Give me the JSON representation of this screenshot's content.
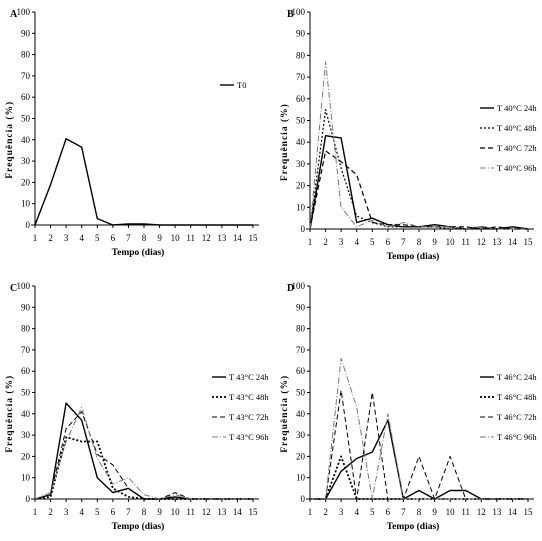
{
  "chart_data": [
    {
      "panel": "A",
      "type": "line",
      "title": "",
      "xlabel": "Tempo (dias)",
      "ylabel": "Frequência (%)",
      "x": [
        1,
        2,
        3,
        4,
        5,
        6,
        7,
        8,
        9,
        10,
        11,
        12,
        13,
        14,
        15
      ],
      "xlim": [
        1,
        15
      ],
      "ylim": [
        0,
        100
      ],
      "yticks": [
        0,
        10,
        20,
        30,
        40,
        50,
        60,
        70,
        80,
        90,
        100
      ],
      "legend_position": "right",
      "series": [
        {
          "name": "T0",
          "values": [
            0,
            19,
            40.5,
            36.5,
            3,
            0,
            0.5,
            0.5,
            0,
            0,
            0,
            0,
            0,
            0,
            0
          ],
          "style": "solid",
          "width": 1.4,
          "color": "#000000"
        }
      ]
    },
    {
      "panel": "B",
      "type": "line",
      "title": "",
      "xlabel": "Tempo (dias)",
      "ylabel": "Frequência (%)",
      "x": [
        1,
        2,
        3,
        4,
        5,
        6,
        7,
        8,
        9,
        10,
        11,
        12,
        13,
        14,
        15
      ],
      "xlim": [
        1,
        15
      ],
      "ylim": [
        0,
        100
      ],
      "yticks": [
        0,
        10,
        20,
        30,
        40,
        50,
        60,
        70,
        80,
        90,
        100
      ],
      "legend_position": "right",
      "series": [
        {
          "name": "T 40°C 24h",
          "values": [
            0,
            43,
            42,
            3,
            5,
            2,
            1,
            1,
            2,
            1,
            0,
            1,
            0,
            1,
            0
          ],
          "style": "solid",
          "width": 1.4,
          "color": "#000000"
        },
        {
          "name": "T 40°C 48h",
          "values": [
            0,
            55,
            28,
            6,
            3,
            1,
            1,
            1,
            1,
            0,
            0,
            0,
            0,
            0,
            0
          ],
          "style": "dotted",
          "width": 1.2,
          "color": "#000000"
        },
        {
          "name": "T 40°C 72h",
          "values": [
            0,
            36,
            31,
            25,
            3,
            2,
            2,
            1,
            1,
            1,
            1,
            0,
            1,
            0,
            0
          ],
          "style": "dashed",
          "width": 1.2,
          "color": "#000000"
        },
        {
          "name": "T 40°C 96h",
          "values": [
            0,
            77,
            10,
            1,
            4,
            1,
            3,
            1,
            1,
            1,
            0,
            1,
            0,
            0,
            0
          ],
          "style": "dashdot",
          "width": 1.0,
          "color": "#777777"
        }
      ]
    },
    {
      "panel": "C",
      "type": "line",
      "title": "",
      "xlabel": "Tempo (dias)",
      "ylabel": "Frequência (%)",
      "x": [
        1,
        2,
        3,
        4,
        5,
        6,
        7,
        8,
        9,
        10,
        11,
        12,
        13,
        14,
        15
      ],
      "xlim": [
        1,
        15
      ],
      "ylim": [
        0,
        100
      ],
      "yticks": [
        0,
        10,
        20,
        30,
        40,
        50,
        60,
        70,
        80,
        90,
        100
      ],
      "legend_position": "right",
      "series": [
        {
          "name": "T 43°C 24h",
          "values": [
            0,
            2,
            45,
            37,
            10,
            3,
            5,
            0,
            0,
            1,
            0,
            0,
            0,
            0,
            0
          ],
          "style": "solid",
          "width": 1.4,
          "color": "#000000"
        },
        {
          "name": "T 43°C 48h",
          "values": [
            0,
            1,
            29,
            27,
            27,
            5,
            1,
            0,
            0,
            0,
            0,
            0,
            0,
            0,
            0
          ],
          "style": "dotted",
          "width": 1.8,
          "color": "#000000"
        },
        {
          "name": "T 43°C 72h",
          "values": [
            0,
            2,
            33,
            41,
            21,
            16,
            5,
            0,
            0,
            3,
            0,
            0,
            0,
            0,
            0
          ],
          "style": "dashed",
          "width": 1.0,
          "color": "#000000"
        },
        {
          "name": "T 43°C 96h",
          "values": [
            0,
            3,
            27,
            43,
            19,
            7,
            10,
            2,
            0,
            2,
            0,
            0,
            0,
            0,
            0
          ],
          "style": "dashdot",
          "width": 1.0,
          "color": "#777777"
        }
      ]
    },
    {
      "panel": "D",
      "type": "line",
      "title": "",
      "xlabel": "Tempo (dias)",
      "ylabel": "Frequência (%)",
      "x": [
        1,
        2,
        3,
        4,
        5,
        6,
        7,
        8,
        9,
        10,
        11,
        12,
        13,
        14,
        15
      ],
      "xlim": [
        1,
        15
      ],
      "ylim": [
        0,
        100
      ],
      "yticks": [
        0,
        10,
        20,
        30,
        40,
        50,
        60,
        70,
        80,
        90,
        100
      ],
      "legend_position": "right",
      "series": [
        {
          "name": "T 46°C 24h",
          "values": [
            0,
            0,
            13,
            19,
            22,
            37,
            0,
            4,
            0,
            4,
            4,
            0,
            0,
            0,
            0
          ],
          "style": "solid",
          "width": 1.4,
          "color": "#000000"
        },
        {
          "name": "T 46°C 48h",
          "values": [
            0,
            0,
            20,
            0,
            0,
            0,
            0,
            0,
            0,
            0,
            0,
            0,
            0,
            0,
            0
          ],
          "style": "dotted",
          "width": 1.8,
          "color": "#000000"
        },
        {
          "name": "T 46°C 72h",
          "values": [
            0,
            0,
            51,
            0,
            50,
            0,
            0,
            20,
            0,
            20,
            0,
            0,
            0,
            0,
            0
          ],
          "style": "dashed",
          "width": 1.0,
          "color": "#000000"
        },
        {
          "name": "T 46°C 96h",
          "values": [
            0,
            0,
            66,
            43,
            0,
            40,
            0,
            0,
            0,
            0,
            0,
            0,
            0,
            0,
            0
          ],
          "style": "dashdot",
          "width": 1.0,
          "color": "#777777"
        }
      ]
    }
  ]
}
